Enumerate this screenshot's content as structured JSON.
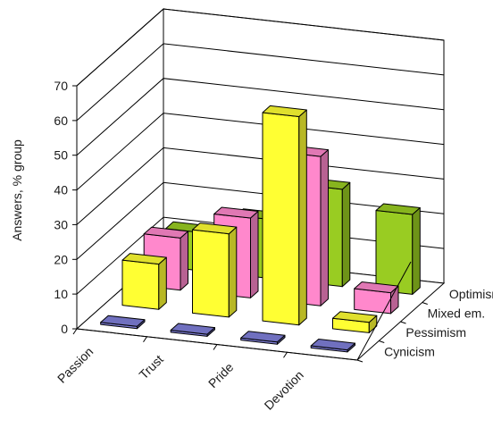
{
  "chart_data": {
    "type": "bar",
    "view": "3d-clustered-depth",
    "ylabel": "Answers, % group",
    "ylim": [
      0,
      70
    ],
    "yticks": [
      "0",
      "10",
      "20",
      "30",
      "40",
      "50",
      "60",
      "70"
    ],
    "categories": [
      "Passion",
      "Trust",
      "Pride",
      "Devotion"
    ],
    "series": [
      {
        "name": "Cynicism",
        "values": [
          0,
          0,
          0,
          0
        ],
        "color": "#7f7fd9"
      },
      {
        "name": "Pessimism",
        "values": [
          13,
          24,
          60,
          3
        ],
        "color": "#ffff33"
      },
      {
        "name": "Mixed em.",
        "values": [
          15,
          23,
          43,
          6
        ],
        "color": "#ff88cc"
      },
      {
        "name": "Optimism",
        "values": [
          11,
          17,
          28,
          23
        ],
        "color": "#99cc22"
      }
    ],
    "depth_labels": [
      "Cynicism",
      "Pessimism",
      "Mixed em.",
      "Optimism"
    ],
    "grid": true,
    "legend": "none"
  }
}
